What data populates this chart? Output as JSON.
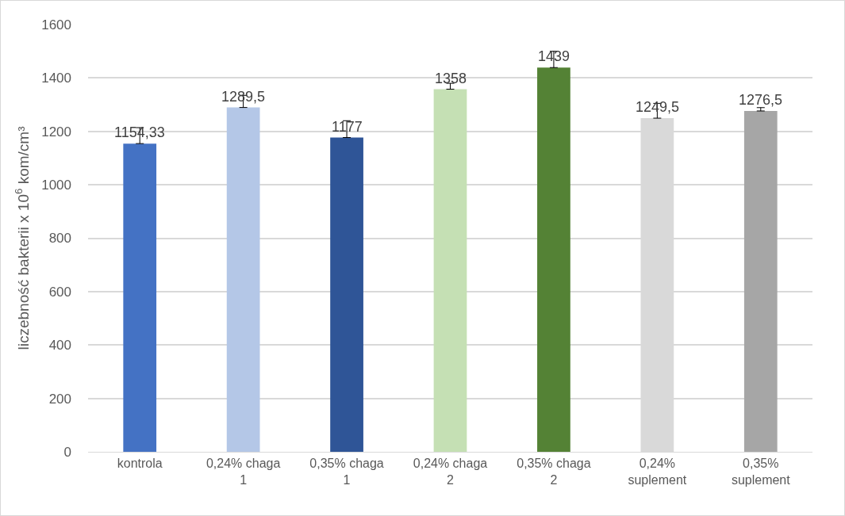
{
  "chart_data": {
    "type": "bar",
    "ylabel": "liczebność bakterii x 10$^{6}$ kom/cm³",
    "categories": [
      "kontrola",
      "0,24% chaga 1",
      "0,35% chaga 1",
      "0,24% chaga 2",
      "0,35% chaga 2",
      "0,24% suplement",
      "0,35% suplement"
    ],
    "values": [
      1154.33,
      1289.5,
      1177,
      1358,
      1439,
      1249.5,
      1276.5
    ],
    "colors": [
      "#4472c4",
      "#b4c7e7",
      "#2f5597",
      "#c5e0b4",
      "#548235",
      "#d9d9d9",
      "#a6a6a6"
    ],
    "errors": [
      [
        1154.33,
        1214
      ],
      [
        1289.5,
        1335
      ],
      [
        1177,
        1240
      ],
      [
        1358,
        1380
      ],
      [
        1439,
        1500
      ],
      [
        1249.5,
        1305
      ],
      [
        1276.5,
        1289
      ]
    ],
    "value_labels": [
      "1154,33",
      "1289,5",
      "1177",
      "1358",
      "1439",
      "1249,5",
      "1276,5"
    ],
    "ylim": [
      0,
      1600
    ],
    "yticks": [
      0,
      200,
      400,
      600,
      800,
      1000,
      1200,
      1400,
      1600
    ],
    "grid": "y"
  }
}
